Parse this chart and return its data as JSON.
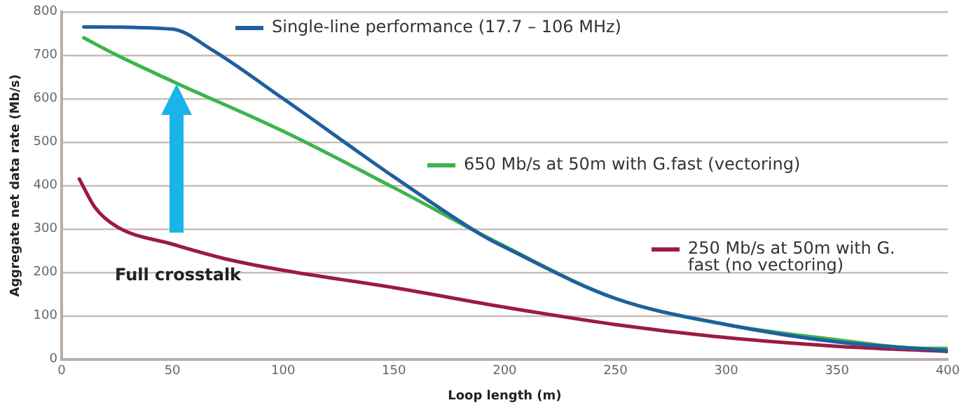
{
  "chart_data": {
    "type": "line",
    "xlabel": "Loop length (m)",
    "ylabel": "Aggregate net data rate (Mb/s)",
    "xlim": [
      0,
      400
    ],
    "xticks": [
      0,
      50,
      100,
      150,
      200,
      250,
      300,
      350,
      400
    ],
    "ylim": [
      0,
      800
    ],
    "yticks": [
      0,
      100,
      200,
      300,
      400,
      500,
      600,
      700,
      800
    ],
    "grid": "y",
    "legend": "top right",
    "marker": "none",
    "line_style": "solid",
    "annotations": [
      "Full crosstalk"
    ],
    "series": [
      {
        "name": "Single-line performance (17.7 – 106 MHz)",
        "color": "#1f5fa0",
        "x": [
          10,
          50,
          68,
          100,
          150,
          190,
          200,
          250,
          300,
          350,
          400
        ],
        "values": [
          765,
          760,
          712,
          600,
          420,
          285,
          258,
          140,
          80,
          40,
          20
        ]
      },
      {
        "name": "650 Mb/s at 50m with G.fast (vectoring)",
        "color": "#3cb54a",
        "x": [
          10,
          25,
          50,
          100,
          150,
          200,
          250,
          300,
          350,
          390,
          400
        ],
        "values": [
          740,
          700,
          640,
          525,
          395,
          260,
          140,
          80,
          45,
          25,
          25
        ]
      },
      {
        "name": "250 Mb/s at 50m with G. fast (no vectoring)",
        "color": "#9b1b45",
        "x": [
          8,
          15,
          25,
          50,
          75,
          100,
          150,
          200,
          250,
          300,
          350,
          400
        ],
        "values": [
          415,
          350,
          305,
          265,
          230,
          205,
          165,
          120,
          80,
          50,
          30,
          18
        ]
      }
    ]
  }
}
